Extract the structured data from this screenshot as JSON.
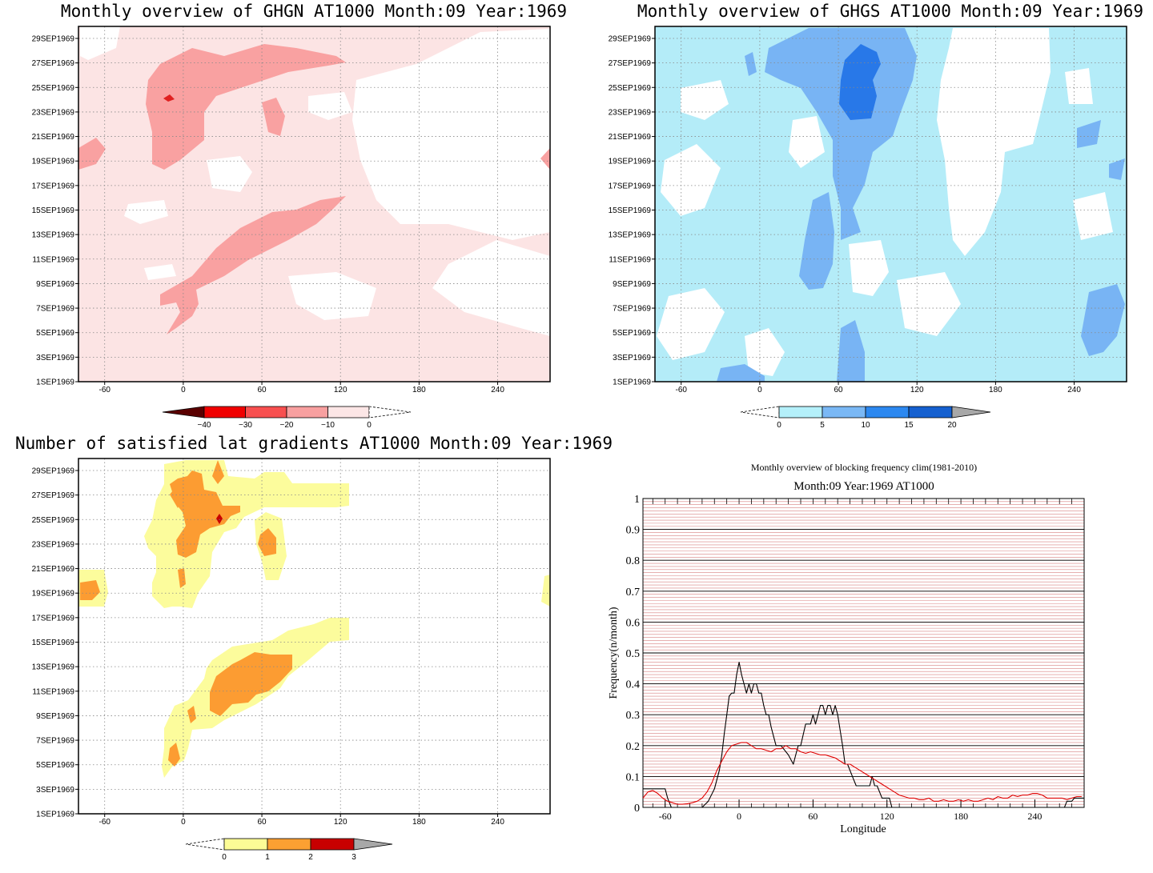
{
  "chart_data": [
    {
      "type": "heatmap",
      "title": "Monthly overview of GHGN AT1000 Month:09 Year:1969",
      "x_ticks": [
        -60,
        0,
        60,
        120,
        180,
        240
      ],
      "xlim": [
        -80,
        280
      ],
      "y_ticks": [
        "1SEP1969",
        "3SEP1969",
        "5SEP1969",
        "7SEP1969",
        "9SEP1969",
        "11SEP1969",
        "13SEP1969",
        "15SEP1969",
        "17SEP1969",
        "19SEP1969",
        "21SEP1969",
        "23SEP1969",
        "25SEP1969",
        "27SEP1969",
        "29SEP1969"
      ],
      "colorbar": {
        "labels": [
          "-40",
          "-30",
          "-20",
          "-10",
          "0"
        ],
        "colors": [
          "#5a0000",
          "#f00000",
          "#f85050",
          "#f8a0a0",
          "#fce6e6"
        ]
      },
      "colors": {
        "light": "#fce4e4",
        "mid": "#f9a1a1",
        "dark": "#e02020"
      }
    },
    {
      "type": "heatmap",
      "title": "Monthly overview of GHGS AT1000 Month:09 Year:1969",
      "x_ticks": [
        -60,
        0,
        60,
        120,
        180,
        240
      ],
      "xlim": [
        -80,
        280
      ],
      "y_ticks": [
        "1SEP1969",
        "3SEP1969",
        "5SEP1969",
        "7SEP1969",
        "9SEP1969",
        "11SEP1969",
        "13SEP1969",
        "15SEP1969",
        "17SEP1969",
        "19SEP1969",
        "21SEP1969",
        "23SEP1969",
        "25SEP1969",
        "27SEP1969",
        "29SEP1969"
      ],
      "colorbar": {
        "labels": [
          "0",
          "5",
          "10",
          "15",
          "20"
        ],
        "colors": [
          "#b4f0fa",
          "#7ab8f5",
          "#2c88f0",
          "#1560d0",
          "#a8a8a8"
        ]
      },
      "colors": {
        "light": "#b4ecf8",
        "mid": "#78b4f4",
        "dark": "#2878e8"
      }
    },
    {
      "type": "heatmap",
      "title": "Number of satisfied lat gradients AT1000 Month:09 Year:1969",
      "x_ticks": [
        -60,
        0,
        60,
        120,
        180,
        240
      ],
      "xlim": [
        -80,
        280
      ],
      "y_ticks": [
        "1SEP1969",
        "3SEP1969",
        "5SEP1969",
        "7SEP1969",
        "9SEP1969",
        "11SEP1969",
        "13SEP1969",
        "15SEP1969",
        "17SEP1969",
        "19SEP1969",
        "21SEP1969",
        "23SEP1969",
        "25SEP1969",
        "27SEP1969",
        "29SEP1969"
      ],
      "colorbar": {
        "labels": [
          "0",
          "1",
          "2",
          "3"
        ],
        "colors": [
          "#fcfc96",
          "#fca032",
          "#c80000",
          "#a8a8a8"
        ]
      },
      "colors": {
        "light": "#fcfc9c",
        "mid": "#fc9c32",
        "dark": "#c80000"
      }
    },
    {
      "type": "line",
      "title": "Monthly overview of blocking frequency clim(1981-2010)",
      "subtitle": "Month:09 Year:1969  AT1000",
      "xlabel": "Longitude",
      "ylabel": "Frequency(n/month)",
      "xlim": [
        -78,
        280
      ],
      "ylim": [
        0,
        1
      ],
      "x_ticks": [
        -60,
        0,
        60,
        120,
        180,
        240
      ],
      "y_ticks": [
        "0",
        "0.1",
        "0.2",
        "0.3",
        "0.4",
        "0.5",
        "0.6",
        "0.7",
        "0.8",
        "0.9",
        "1"
      ],
      "series": [
        {
          "color": "#000000",
          "x": [
            -78,
            -60,
            -58,
            -55,
            -30,
            -25,
            -20,
            -16,
            -14,
            -12,
            -10,
            -8,
            -6,
            -4,
            -2,
            0,
            2,
            4,
            6,
            8,
            10,
            12,
            14,
            16,
            18,
            20,
            22,
            24,
            26,
            28,
            30,
            34,
            40,
            44,
            46,
            48,
            50,
            54,
            58,
            60,
            62,
            64,
            66,
            68,
            70,
            72,
            74,
            76,
            78,
            80,
            84,
            86,
            88,
            92,
            95,
            98,
            100,
            106,
            108,
            110,
            112,
            116,
            118,
            120,
            122,
            124,
            126,
            130,
            200,
            260,
            264,
            266,
            268,
            270,
            272,
            274,
            276,
            280
          ],
          "y": [
            0.06,
            0.06,
            0.03,
            0,
            0,
            0.02,
            0.06,
            0.12,
            0.17,
            0.24,
            0.3,
            0.36,
            0.37,
            0.37,
            0.43,
            0.47,
            0.43,
            0.4,
            0.37,
            0.4,
            0.37,
            0.4,
            0.4,
            0.37,
            0.37,
            0.33,
            0.3,
            0.3,
            0.26,
            0.23,
            0.2,
            0.2,
            0.17,
            0.14,
            0.17,
            0.2,
            0.2,
            0.27,
            0.27,
            0.3,
            0.27,
            0.3,
            0.33,
            0.33,
            0.3,
            0.33,
            0.33,
            0.3,
            0.33,
            0.3,
            0.2,
            0.14,
            0.14,
            0.1,
            0.07,
            0.07,
            0.07,
            0.07,
            0.1,
            0.07,
            0.07,
            0.03,
            0.03,
            0.03,
            0.03,
            0,
            0,
            0,
            0,
            0,
            0,
            0.02,
            0.02,
            0.02,
            0.03,
            0.03,
            0.03,
            0.03
          ]
        },
        {
          "color": "#e00000",
          "x": [
            -78,
            -74,
            -70,
            -66,
            -62,
            -58,
            -54,
            -50,
            -46,
            -42,
            -38,
            -34,
            -30,
            -26,
            -22,
            -18,
            -14,
            -10,
            -6,
            -2,
            2,
            6,
            10,
            14,
            18,
            22,
            26,
            30,
            34,
            38,
            42,
            46,
            50,
            54,
            58,
            62,
            66,
            70,
            74,
            78,
            82,
            86,
            90,
            94,
            98,
            102,
            106,
            110,
            114,
            118,
            122,
            126,
            130,
            134,
            138,
            142,
            146,
            150,
            154,
            158,
            162,
            166,
            170,
            174,
            178,
            182,
            186,
            190,
            194,
            198,
            202,
            206,
            210,
            214,
            218,
            222,
            226,
            230,
            234,
            238,
            242,
            246,
            250,
            254,
            258,
            262,
            266,
            270,
            274,
            278
          ],
          "y": [
            0.03,
            0.05,
            0.055,
            0.045,
            0.03,
            0.02,
            0.015,
            0.01,
            0.01,
            0.012,
            0.015,
            0.02,
            0.03,
            0.05,
            0.08,
            0.12,
            0.15,
            0.18,
            0.2,
            0.205,
            0.21,
            0.21,
            0.2,
            0.19,
            0.19,
            0.185,
            0.18,
            0.19,
            0.19,
            0.2,
            0.19,
            0.19,
            0.18,
            0.175,
            0.18,
            0.175,
            0.17,
            0.17,
            0.165,
            0.16,
            0.15,
            0.14,
            0.14,
            0.13,
            0.12,
            0.11,
            0.1,
            0.09,
            0.08,
            0.07,
            0.06,
            0.05,
            0.04,
            0.035,
            0.03,
            0.03,
            0.025,
            0.025,
            0.03,
            0.02,
            0.02,
            0.025,
            0.02,
            0.02,
            0.025,
            0.02,
            0.025,
            0.02,
            0.02,
            0.025,
            0.03,
            0.025,
            0.035,
            0.03,
            0.03,
            0.04,
            0.035,
            0.04,
            0.04,
            0.045,
            0.045,
            0.04,
            0.03,
            0.03,
            0.03,
            0.03,
            0.025,
            0.03,
            0.035,
            0.035
          ]
        }
      ]
    }
  ]
}
